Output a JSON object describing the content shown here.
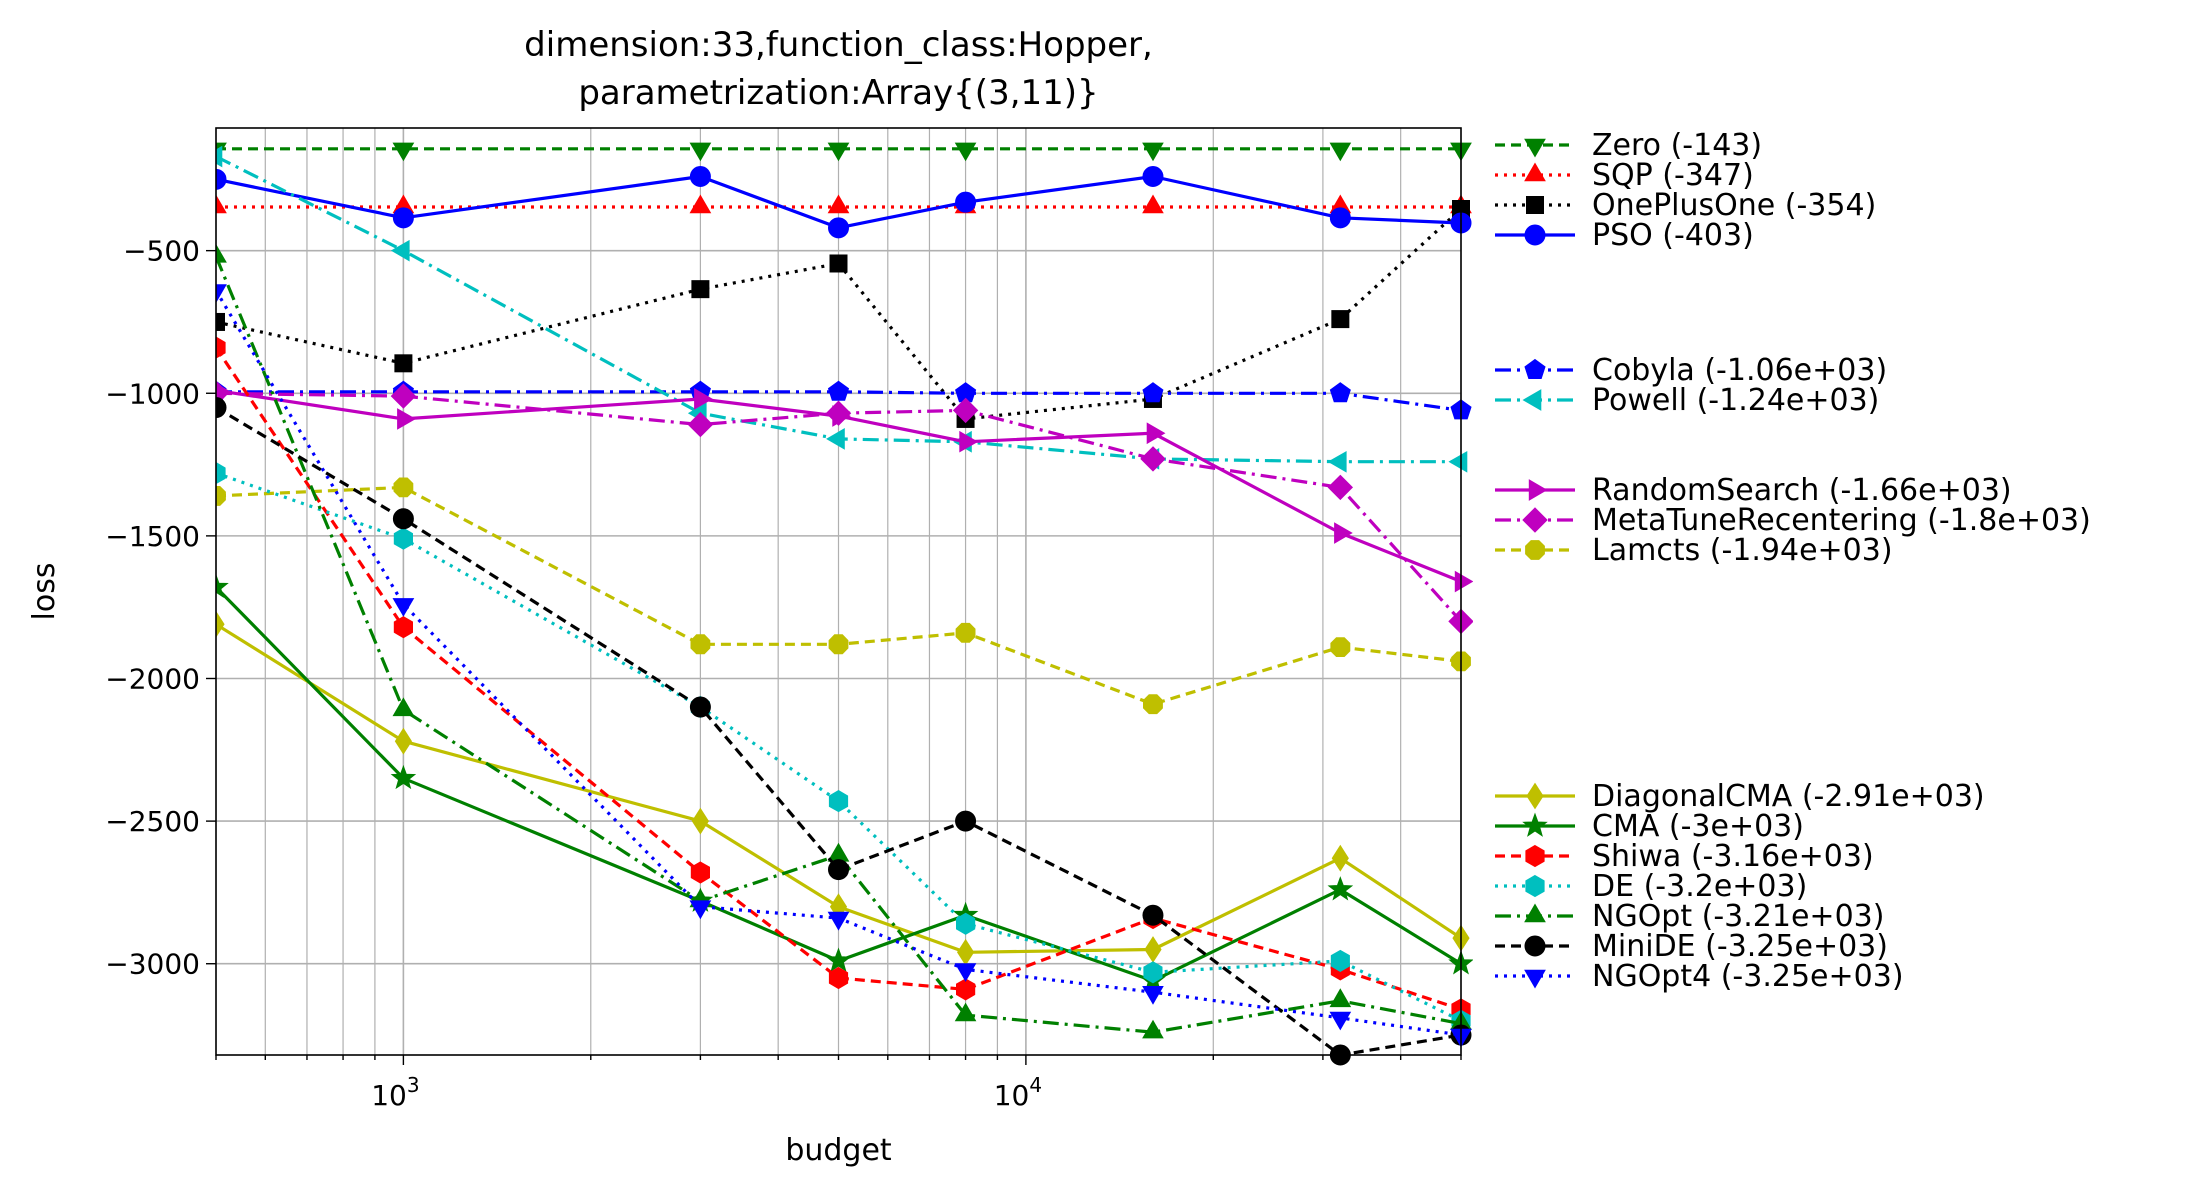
{
  "chart_data": {
    "type": "line",
    "title": [
      "dimension:33,function_class:Hopper,",
      "parametrization:Array{(3,11)}"
    ],
    "xlabel": "budget",
    "ylabel": "loss",
    "xscale": "log",
    "xlim": [
      500,
      50000
    ],
    "ylim": [
      -3320,
      -70
    ],
    "grid": true,
    "legend_position": "outside-right",
    "x_ticks": [
      {
        "value": 1000,
        "base": "10",
        "exp": "3"
      },
      {
        "value": 10000,
        "base": "10",
        "exp": "4"
      }
    ],
    "y_ticks": [
      {
        "value": -500,
        "label": "−500"
      },
      {
        "value": -1000,
        "label": "−1000"
      },
      {
        "value": -1500,
        "label": "−1500"
      },
      {
        "value": -2000,
        "label": "−2000"
      },
      {
        "value": -2500,
        "label": "−2500"
      },
      {
        "value": -3000,
        "label": "−3000"
      }
    ],
    "x": [
      500,
      1000,
      3000,
      5000,
      8000,
      16000,
      32000,
      50000
    ],
    "series": [
      {
        "name": "Zero (-143)",
        "color": "#008000",
        "dash": "10,6",
        "marker": "tri-down",
        "values": [
          -143,
          -143,
          -143,
          -143,
          -143,
          -143,
          -143,
          -143
        ]
      },
      {
        "name": "SQP (-347)",
        "color": "#ff0000",
        "dash": "3,6",
        "marker": "tri-up",
        "values": [
          -347,
          -347,
          -347,
          -347,
          -347,
          -347,
          -347,
          -347
        ]
      },
      {
        "name": "OnePlusOne (-354)",
        "color": "#000000",
        "dash": "3,6",
        "marker": "square",
        "values": [
          -750,
          -895,
          -635,
          -545,
          -1090,
          -1020,
          -740,
          -354
        ]
      },
      {
        "name": "PSO (-403)",
        "color": "#0000ff",
        "dash": "",
        "marker": "circle",
        "values": [
          -250,
          -385,
          -240,
          -420,
          -330,
          -240,
          -385,
          -403
        ]
      },
      {
        "name": "Cobyla (-1.06e+03)",
        "color": "#0000ff",
        "dash": "16,6,3,6",
        "marker": "pentagon",
        "values": [
          -995,
          -995,
          -995,
          -995,
          -1000,
          -1000,
          -1000,
          -1060
        ]
      },
      {
        "name": "Powell (-1.24e+03)",
        "color": "#00bfbf",
        "dash": "16,6,3,6",
        "marker": "tri-left",
        "values": [
          -170,
          -500,
          -1070,
          -1160,
          -1170,
          -1230,
          -1240,
          -1240
        ]
      },
      {
        "name": "RandomSearch (-1.66e+03)",
        "color": "#bf00bf",
        "dash": "",
        "marker": "tri-right",
        "values": [
          -990,
          -1090,
          -1020,
          -1080,
          -1170,
          -1140,
          -1490,
          -1660
        ]
      },
      {
        "name": "MetaTuneRecentering (-1.8e+03)",
        "color": "#bf00bf",
        "dash": "16,6,3,6",
        "marker": "diamond",
        "values": [
          -1000,
          -1010,
          -1110,
          -1070,
          -1060,
          -1230,
          -1330,
          -1800
        ]
      },
      {
        "name": "Lamcts (-1.94e+03)",
        "color": "#bfbf00",
        "dash": "10,6",
        "marker": "octagon",
        "values": [
          -1360,
          -1330,
          -1880,
          -1880,
          -1840,
          -2090,
          -1890,
          -1940
        ]
      },
      {
        "name": "DiagonalCMA (-2.91e+03)",
        "color": "#bfbf00",
        "dash": "",
        "marker": "thin-diamond",
        "values": [
          -1810,
          -2220,
          -2500,
          -2800,
          -2960,
          -2950,
          -2630,
          -2910
        ]
      },
      {
        "name": "CMA (-3e+03)",
        "color": "#008000",
        "dash": "",
        "marker": "star",
        "values": [
          -1680,
          -2350,
          -2780,
          -2990,
          -2830,
          -3060,
          -2740,
          -3000
        ]
      },
      {
        "name": "Shiwa (-3.16e+03)",
        "color": "#ff0000",
        "dash": "10,6",
        "marker": "hexagon",
        "values": [
          -840,
          -1820,
          -2680,
          -3050,
          -3090,
          -2840,
          -3020,
          -3160
        ]
      },
      {
        "name": "DE (-3.2e+03)",
        "color": "#00bfbf",
        "dash": "3,6",
        "marker": "hexagon",
        "values": [
          -1280,
          -1510,
          -2100,
          -2430,
          -2860,
          -3030,
          -2990,
          -3200
        ]
      },
      {
        "name": "NGOpt (-3.21e+03)",
        "color": "#008000",
        "dash": "16,6,3,6",
        "marker": "tri-up",
        "values": [
          -520,
          -2110,
          -2780,
          -2620,
          -3180,
          -3240,
          -3130,
          -3210
        ]
      },
      {
        "name": "MiniDE (-3.25e+03)",
        "color": "#000000",
        "dash": "10,6",
        "marker": "circle",
        "values": [
          -1050,
          -1440,
          -2100,
          -2670,
          -2500,
          -2830,
          -3320,
          -3250
        ]
      },
      {
        "name": "NGOpt4 (-3.25e+03)",
        "color": "#0000ff",
        "dash": "3,6",
        "marker": "tri-down",
        "values": [
          -640,
          -1740,
          -2800,
          -2840,
          -3020,
          -3100,
          -3190,
          -3250
        ]
      }
    ],
    "legend_gap_after": [
      3,
      5,
      8
    ]
  }
}
